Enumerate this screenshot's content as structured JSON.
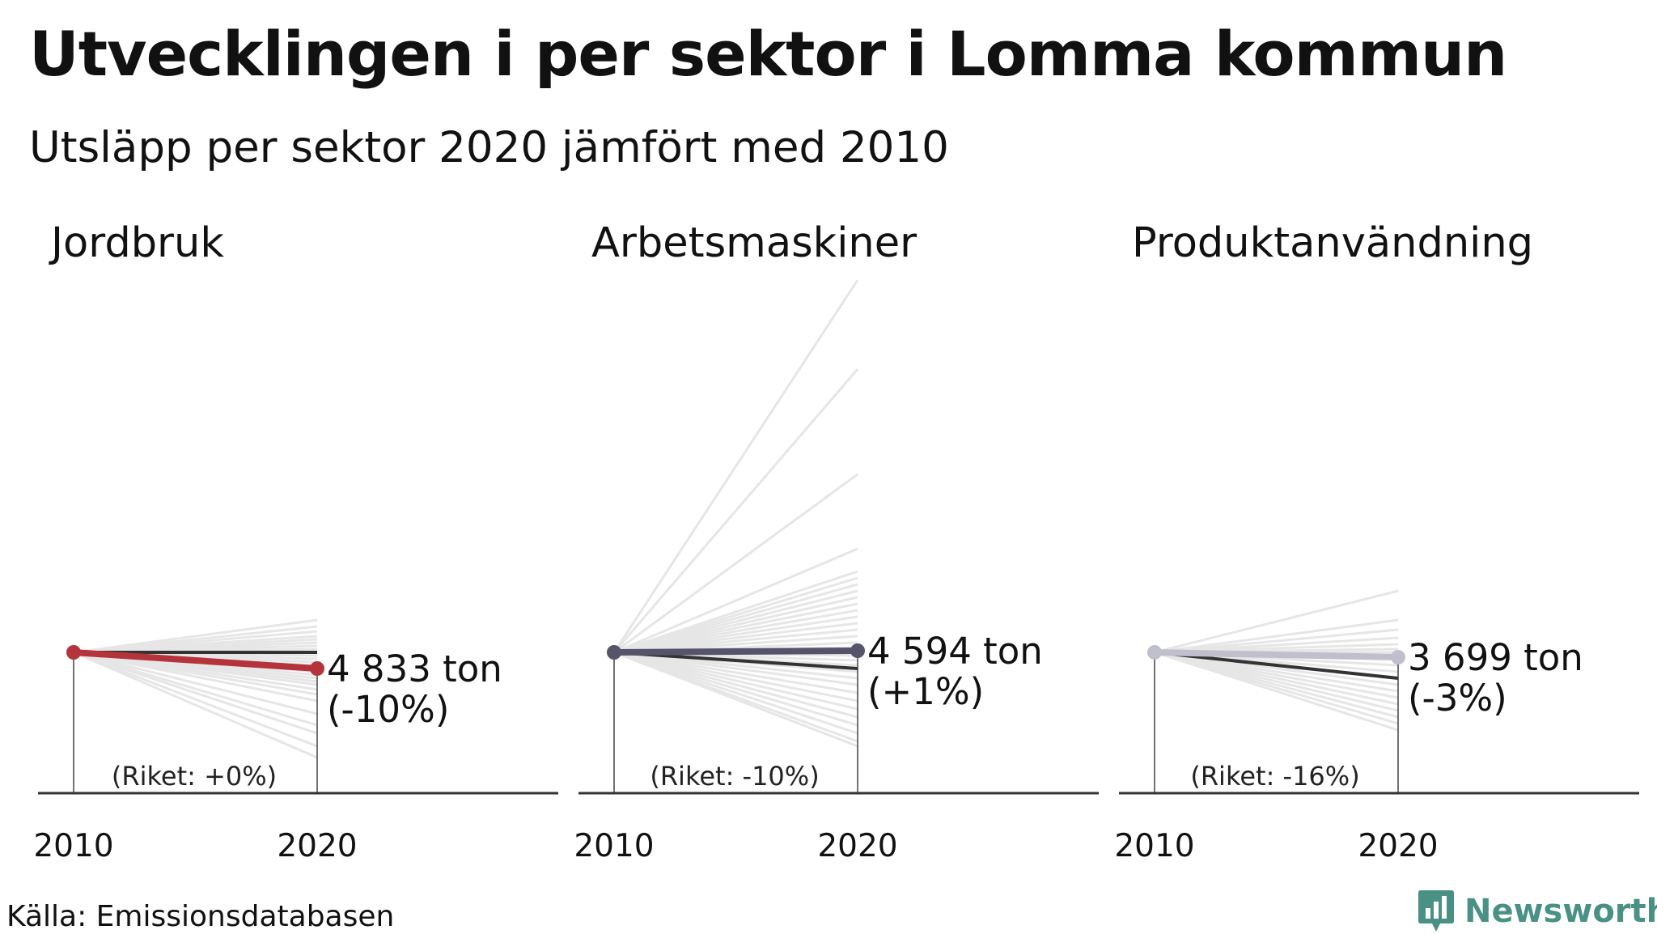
{
  "title": "Utvecklingen i per sektor i Lomma kommun",
  "subtitle": "Utsläpp per sektor 2020 jämfört med 2010",
  "source": "Källa: Emissionsdatabasen",
  "logo": {
    "text": "Newsworthy",
    "icon": "bar-chart-speech-bubble-icon",
    "color": "#4a9185"
  },
  "colors": {
    "background_lines": "#e6e6e6",
    "riket_line": "#333333",
    "axis": "#333333"
  },
  "chart_data": [
    {
      "type": "line",
      "title": "Jordbruk",
      "x": [
        "2010",
        "2020"
      ],
      "highlight": {
        "name": "Lomma",
        "change_pct": -10,
        "value_2020": "4 833 ton",
        "pct_label": "(-10%)",
        "color": "#b5343c"
      },
      "riket": {
        "change_pct": 0,
        "label": "(Riket: +0%)"
      },
      "other_municipalities_change_pct": [
        20,
        16,
        13,
        10,
        8,
        6,
        4,
        2,
        0,
        -2,
        -4,
        -6,
        -8,
        -10,
        -12,
        -14,
        -16,
        -18,
        -20,
        -23,
        -26,
        -30,
        -38,
        -45,
        -50,
        -58,
        -65
      ]
    },
    {
      "type": "line",
      "title": "Arbetsmaskiner",
      "x": [
        "2010",
        "2020"
      ],
      "highlight": {
        "name": "Lomma",
        "change_pct": 1,
        "value_2020": "4 594 ton",
        "pct_label": "(+1%)",
        "color": "#55546a"
      },
      "riket": {
        "change_pct": -10,
        "label": "(Riket: -10%)"
      },
      "other_municipalities_change_pct": [
        230,
        175,
        110,
        64,
        50,
        46,
        42,
        38,
        34,
        30,
        26,
        22,
        18,
        14,
        10,
        6,
        3,
        -2,
        -5,
        -8,
        -12,
        -16,
        -20,
        -25,
        -30,
        -35,
        -40,
        -45,
        -50,
        -55,
        -58
      ]
    },
    {
      "type": "line",
      "title": "Produktanvändning",
      "x": [
        "2010",
        "2020"
      ],
      "highlight": {
        "name": "Lomma",
        "change_pct": -3,
        "value_2020": "3 699 ton",
        "pct_label": "(-3%)",
        "color": "#c0bfcc"
      },
      "riket": {
        "change_pct": -16,
        "label": "(Riket: -16%)"
      },
      "other_municipalities_change_pct": [
        38,
        20,
        14,
        9,
        5,
        2,
        0,
        -4,
        -8,
        -12,
        -16,
        -20,
        -24,
        -28,
        -32,
        -36,
        -40,
        -44,
        -48
      ]
    }
  ]
}
